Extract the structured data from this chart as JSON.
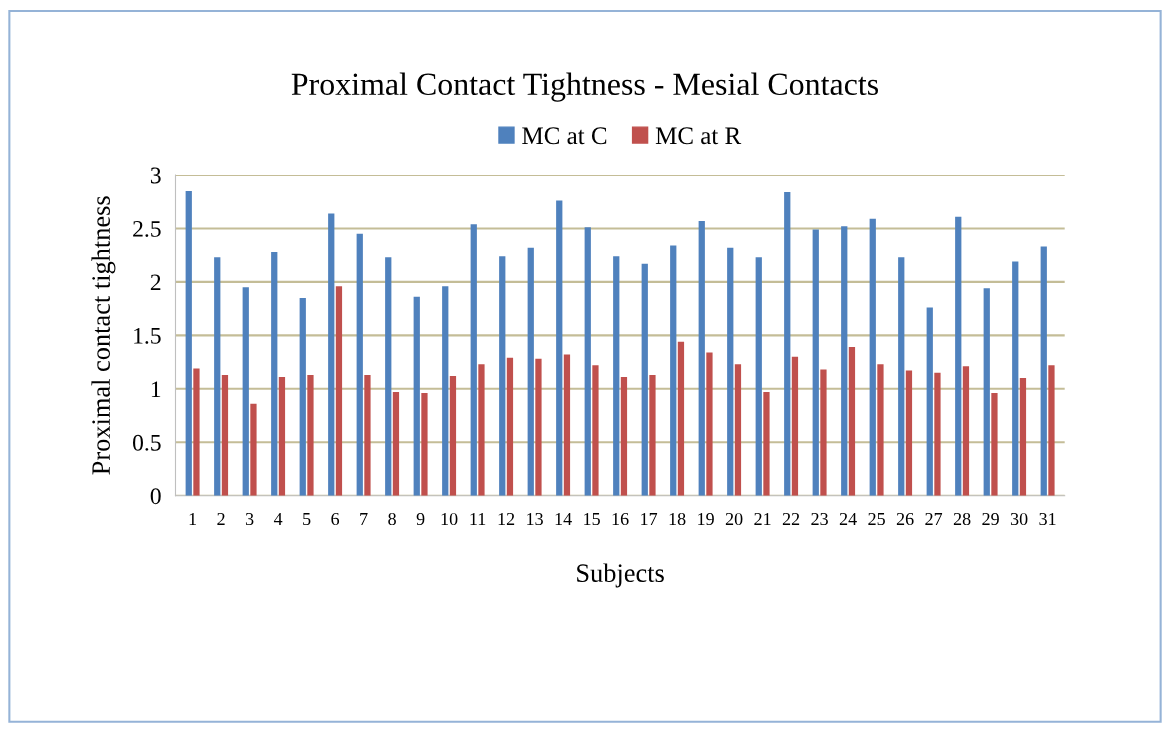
{
  "chart_data": {
    "type": "bar",
    "title": "Proximal Contact Tightness - Mesial Contacts",
    "xlabel": "Subjects",
    "ylabel": "Proximal contact tightness",
    "categories": [
      "1",
      "2",
      "3",
      "4",
      "5",
      "6",
      "7",
      "8",
      "9",
      "10",
      "11",
      "12",
      "13",
      "14",
      "15",
      "16",
      "17",
      "18",
      "19",
      "20",
      "21",
      "22",
      "23",
      "24",
      "25",
      "26",
      "27",
      "28",
      "29",
      "30",
      "31"
    ],
    "series": [
      {
        "name": "MC at C",
        "color": "#4f81bd",
        "values": [
          2.85,
          2.23,
          1.95,
          2.28,
          1.85,
          2.64,
          2.45,
          2.23,
          1.86,
          1.96,
          2.54,
          2.24,
          2.32,
          2.76,
          2.51,
          2.24,
          2.17,
          2.34,
          2.57,
          2.32,
          2.23,
          2.84,
          2.49,
          2.52,
          2.59,
          2.23,
          1.76,
          2.61,
          1.94,
          2.19,
          2.33
        ]
      },
      {
        "name": "MC at R",
        "color": "#c0504d",
        "values": [
          1.19,
          1.13,
          0.86,
          1.11,
          1.13,
          1.96,
          1.13,
          0.97,
          0.96,
          1.12,
          1.23,
          1.29,
          1.28,
          1.32,
          1.22,
          1.11,
          1.13,
          1.44,
          1.34,
          1.23,
          0.97,
          1.3,
          1.18,
          1.39,
          1.23,
          1.17,
          1.15,
          1.21,
          0.96,
          1.1,
          1.22
        ]
      }
    ],
    "ylim": [
      0,
      3
    ],
    "yticks": [
      0,
      0.5,
      1,
      1.5,
      2,
      2.5,
      3
    ],
    "grid": "y",
    "legend": "top"
  }
}
